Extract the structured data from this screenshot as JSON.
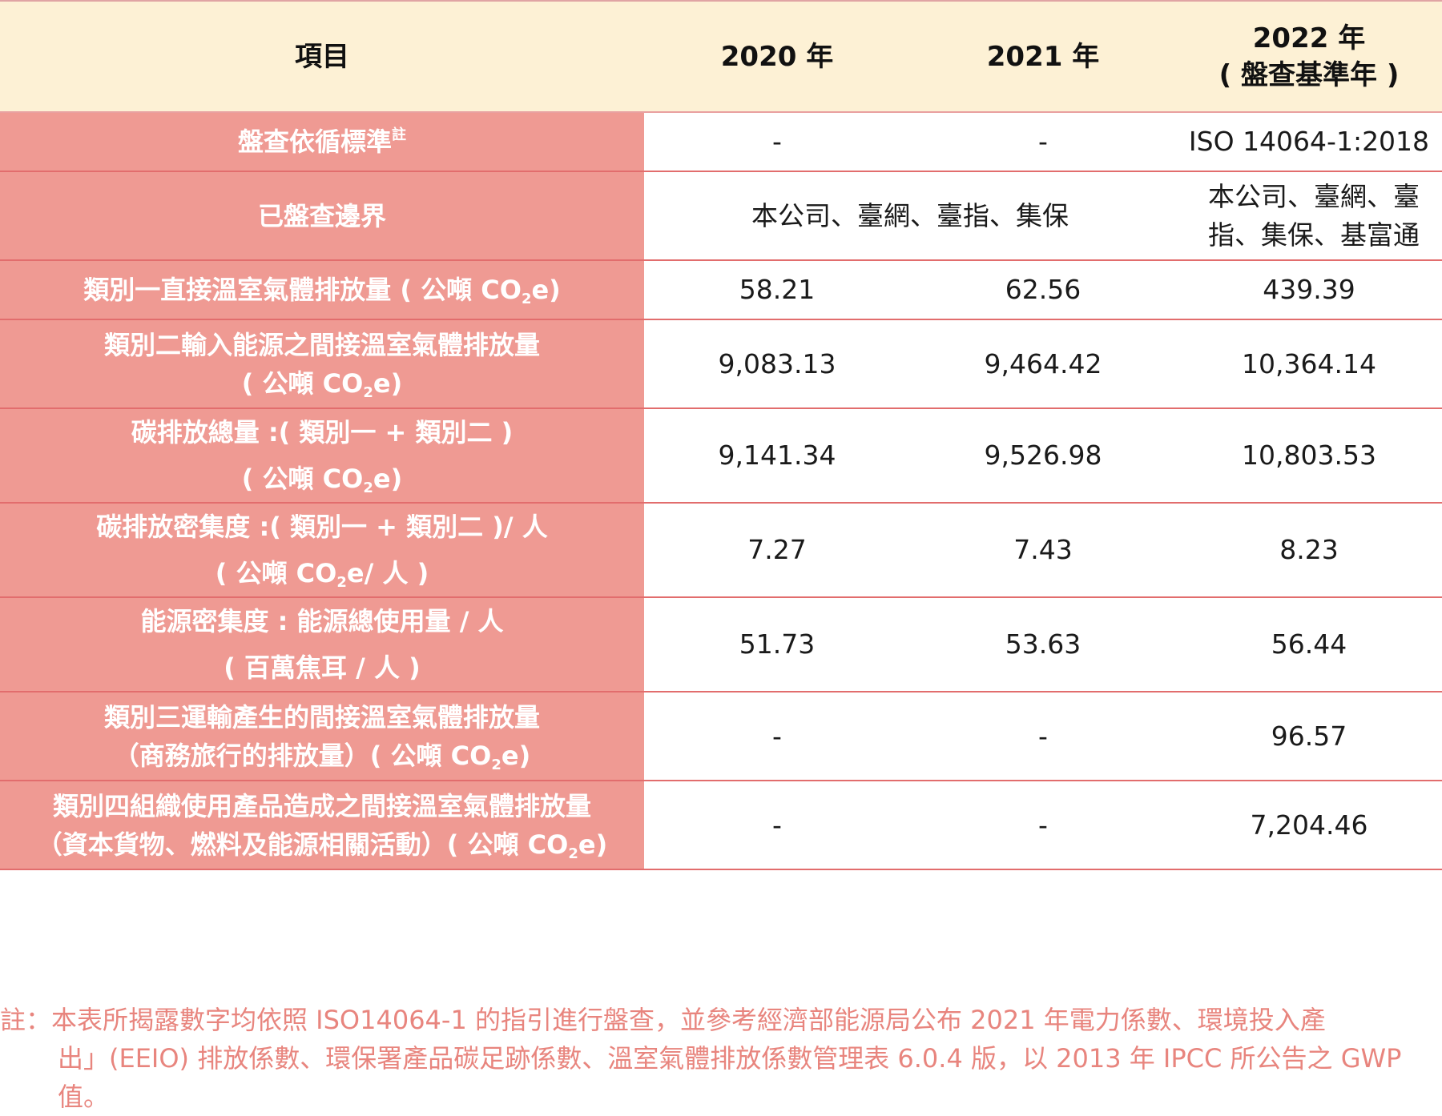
{
  "header": {
    "item": "項目",
    "y2020": "2020 年",
    "y2021": "2021 年",
    "y2022_line1": "2022 年",
    "y2022_line2": "( 盤查基準年 )"
  },
  "rows": {
    "standard": {
      "label": "盤查依循標準",
      "label_sup": "註",
      "v2020": "-",
      "v2021": "-",
      "v2022": "ISO 14064-1:2018"
    },
    "boundary": {
      "label": "已盤查邊界",
      "v2020_2021": "本公司、臺網、臺指、集保",
      "v2022_line1": "本公司、臺網、臺",
      "v2022_line2": "指、集保、基富通"
    },
    "scope1": {
      "label_pre": "類別一直接溫室氣體排放量 ( 公噸 CO",
      "label_sub": "2",
      "label_post": "e)",
      "v2020": "58.21",
      "v2021": "62.56",
      "v2022": "439.39"
    },
    "scope2": {
      "label_line1": "類別二輸入能源之間接溫室氣體排放量",
      "label_pre": "( 公噸 CO",
      "label_sub": "2",
      "label_post": "e)",
      "v2020": "9,083.13",
      "v2021": "9,464.42",
      "v2022": "10,364.14"
    },
    "total": {
      "label_line1": "碳排放總量 :( 類別一 + 類別二 )",
      "label_pre": "( 公噸 CO",
      "label_sub": "2",
      "label_post": "e)",
      "v2020": "9,141.34",
      "v2021": "9,526.98",
      "v2022": "10,803.53"
    },
    "intensity": {
      "label_line1": "碳排放密集度 :( 類別一 + 類別二 )/ 人",
      "label_pre": "( 公噸 CO",
      "label_sub": "2",
      "label_post": "e/ 人 )",
      "v2020": "7.27",
      "v2021": "7.43",
      "v2022": "8.23"
    },
    "energy": {
      "label_line1": "能源密集度 : 能源總使用量 / 人",
      "label_line2": "( 百萬焦耳 / 人 )",
      "v2020": "51.73",
      "v2021": "53.63",
      "v2022": "56.44"
    },
    "scope3": {
      "label_line1": "類別三運輸產生的間接溫室氣體排放量",
      "label_pre": "（商務旅行的排放量）( 公噸 CO",
      "label_sub": "2",
      "label_post": "e)",
      "v2020": "-",
      "v2021": "-",
      "v2022": "96.57"
    },
    "scope4": {
      "label_line1": "類別四組織使用產品造成之間接溫室氣體排放量",
      "label_pre": "（資本貨物、燃料及能源相關活動）( 公噸 CO",
      "label_sub": "2",
      "label_post": "e)",
      "v2020": "-",
      "v2021": "-",
      "v2022": "7,204.46"
    }
  },
  "note": {
    "line1": "註：本表所揭露數字均依照 ISO14064-1 的指引進行盤查，並參考經濟部能源局公布 2021 年電力係數、環境投入產",
    "rest": "出」(EEIO) 排放係數、環保署產品碳足跡係數、溫室氣體排放係數管理表 6.0.4 版，以 2013 年 IPCC 所公告之 GWP 值。"
  },
  "colors": {
    "header_bg": "#fdf1d5",
    "label_bg": "#ef9a93",
    "row_border": "#e26d6d",
    "note_text": "#e8857e"
  }
}
